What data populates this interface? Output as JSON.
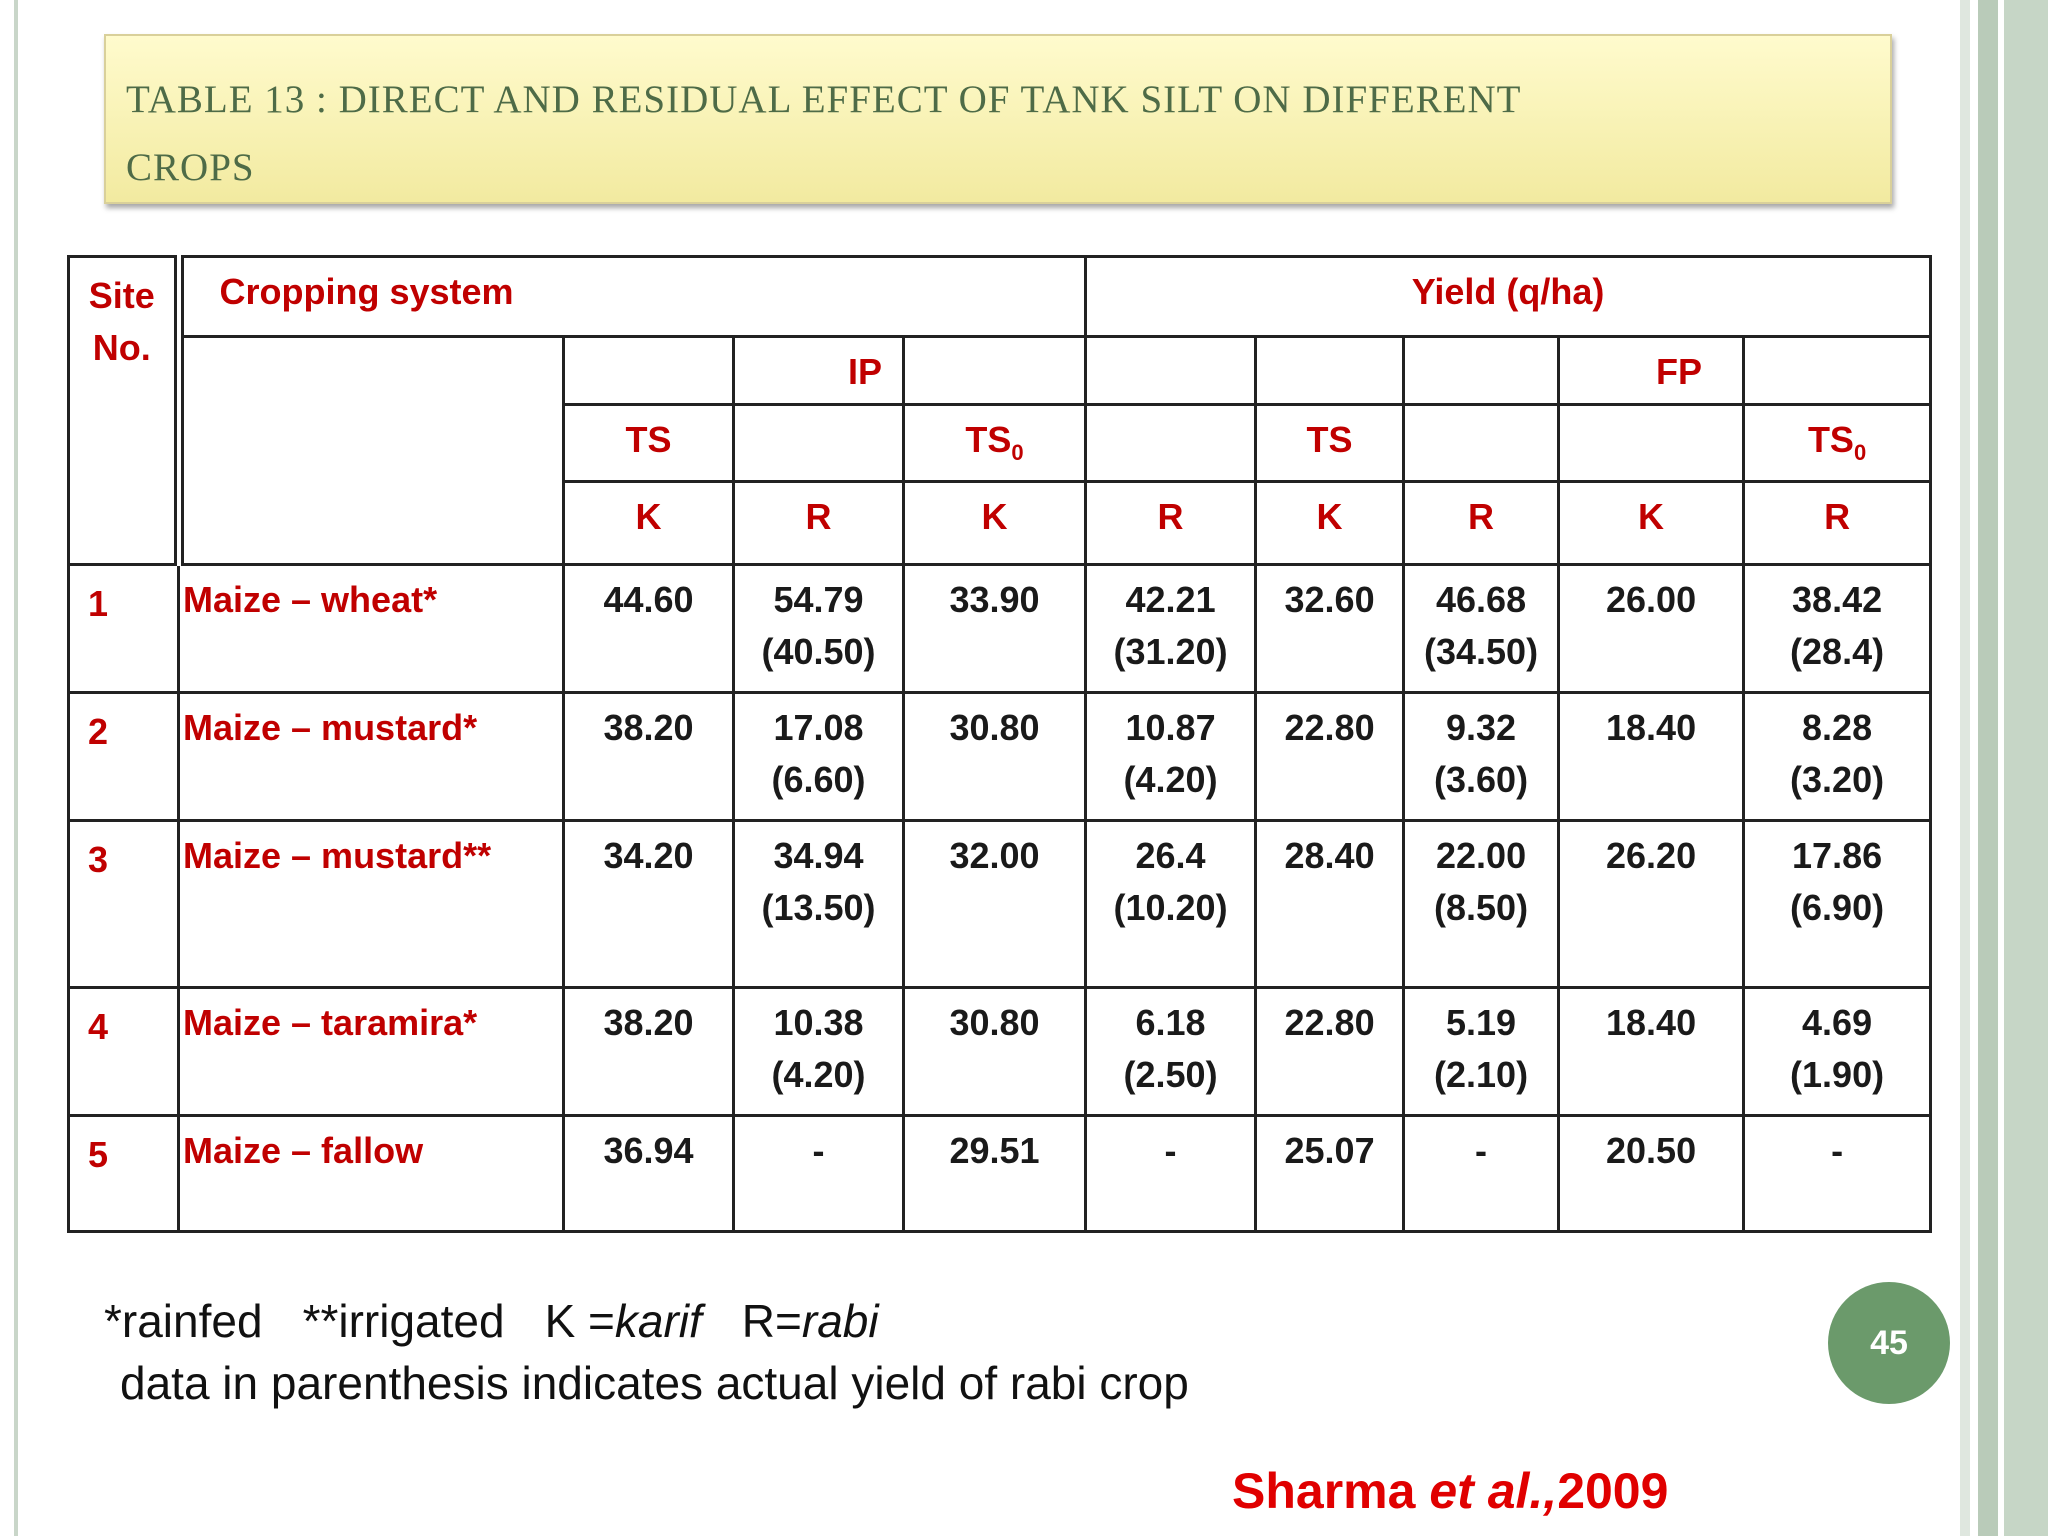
{
  "slide": {
    "title_line1": "Table 13 : Direct and residual effect of tank silt on different",
    "title_line2": "crops",
    "page_number": "45",
    "notes_line1_a": "*rainfed",
    "notes_line1_b": "**irrigated",
    "notes_line1_c": "K =",
    "notes_line1_c_italic": "karif",
    "notes_line1_d": "R=",
    "notes_line1_d_italic": "rabi",
    "notes_line2": "data in parenthesis indicates actual yield of rabi crop",
    "citation_author": "Sharma",
    "citation_etal": "et al.,",
    "citation_year": "2009"
  },
  "table": {
    "header": {
      "site_no": "Site No.",
      "cropping_system": "Cropping system",
      "yield": "Yield (q/ha)",
      "ip": "IP",
      "fp": "FP",
      "ts": "TS",
      "ts0": "TS",
      "ts0_sub": "0",
      "k": "K",
      "r": "R"
    },
    "rows": [
      {
        "site": "1",
        "crop": "Maize – wheat*",
        "c1": "44.60",
        "c2": "54.79",
        "c2b": "(40.50)",
        "c3": "33.90",
        "c4": "42.21",
        "c4b": "(31.20)",
        "c5": "32.60",
        "c6": "46.68",
        "c6b": "(34.50)",
        "c7": "26.00",
        "c8": "38.42",
        "c8b": "(28.4)"
      },
      {
        "site": "2",
        "crop": "Maize – mustard*",
        "c1": "38.20",
        "c2": "17.08",
        "c2b": "(6.60)",
        "c3": "30.80",
        "c4": "10.87",
        "c4b": "(4.20)",
        "c5": "22.80",
        "c6": "9.32",
        "c6b": "(3.60)",
        "c7": "18.40",
        "c8": "8.28",
        "c8b": "(3.20)"
      },
      {
        "site": "3",
        "crop": "Maize – mustard**",
        "c1": "34.20",
        "c2": "34.94",
        "c2b": "(13.50)",
        "c3": "32.00",
        "c4": "26.4",
        "c4b": "(10.20)",
        "c5": "28.40",
        "c6": "22.00",
        "c6b": "(8.50)",
        "c7": "26.20",
        "c8": "17.86",
        "c8b": "(6.90)"
      },
      {
        "site": "4",
        "crop": "Maize – taramira*",
        "c1": "38.20",
        "c2": "10.38",
        "c2b": "(4.20)",
        "c3": "30.80",
        "c4": "6.18",
        "c4b": "(2.50)",
        "c5": "22.80",
        "c6": "5.19",
        "c6b": "(2.10)",
        "c7": "18.40",
        "c8": "4.69",
        "c8b": "(1.90)"
      },
      {
        "site": "5",
        "crop": "Maize – fallow",
        "c1": "36.94",
        "c2": "-",
        "c2b": "",
        "c3": "29.51",
        "c4": "-",
        "c4b": "",
        "c5": "25.07",
        "c6": "-",
        "c6b": "",
        "c7": "20.50",
        "c8": "-",
        "c8b": ""
      }
    ]
  }
}
